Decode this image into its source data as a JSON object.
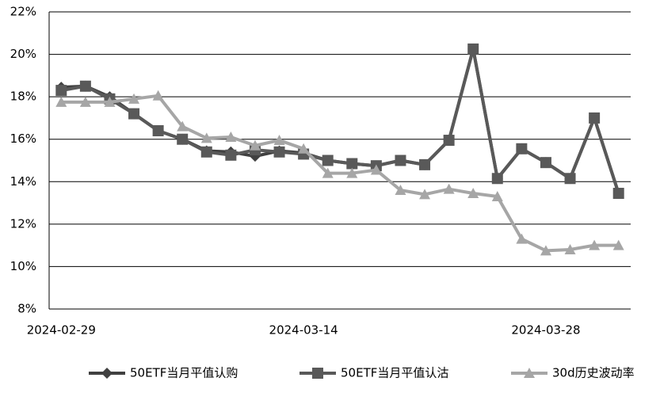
{
  "chart_data": {
    "type": "line",
    "categories": [
      "2024-02-29",
      null,
      null,
      null,
      null,
      null,
      null,
      null,
      null,
      null,
      "2024-03-14",
      null,
      null,
      null,
      null,
      null,
      null,
      null,
      null,
      null,
      "2024-03-28",
      null,
      null,
      null
    ],
    "series": [
      {
        "name": "50ETF当月平值认购",
        "color": "#404040",
        "marker": "diamond",
        "values": [
          18.45,
          18.5,
          18.0,
          17.2,
          16.4,
          16.0,
          15.45,
          15.4,
          15.2,
          15.45,
          15.35,
          15.0,
          14.85,
          14.75,
          15.0,
          14.8,
          15.95,
          20.25,
          14.15,
          15.55,
          14.9,
          14.15,
          17.0,
          13.45
        ]
      },
      {
        "name": "50ETF当月平值认沽",
        "color": "#595959",
        "marker": "square",
        "values": [
          18.3,
          18.5,
          17.9,
          17.2,
          16.4,
          16.0,
          15.4,
          15.25,
          15.5,
          15.4,
          15.3,
          15.0,
          14.85,
          14.75,
          15.0,
          14.8,
          15.95,
          20.25,
          14.15,
          15.55,
          14.9,
          14.15,
          17.0,
          13.45
        ]
      },
      {
        "name": "30d历史波动率",
        "color": "#a6a6a6",
        "marker": "triangle",
        "values": [
          17.75,
          17.75,
          17.75,
          17.9,
          18.05,
          16.6,
          16.05,
          16.1,
          15.7,
          15.95,
          15.55,
          14.4,
          14.4,
          14.55,
          13.6,
          13.4,
          13.65,
          13.45,
          13.3,
          11.3,
          10.75,
          10.8,
          11.0,
          11.0
        ]
      }
    ],
    "ylim": [
      8,
      22
    ],
    "yticks": [
      {
        "value": 8,
        "label": "8%"
      },
      {
        "value": 10,
        "label": "10%"
      },
      {
        "value": 12,
        "label": "12%"
      },
      {
        "value": 14,
        "label": "14%"
      },
      {
        "value": 16,
        "label": "16%"
      },
      {
        "value": 18,
        "label": "18%"
      },
      {
        "value": 20,
        "label": "20%"
      },
      {
        "value": 22,
        "label": "22%"
      }
    ],
    "grid": true,
    "legend": "bottom"
  }
}
